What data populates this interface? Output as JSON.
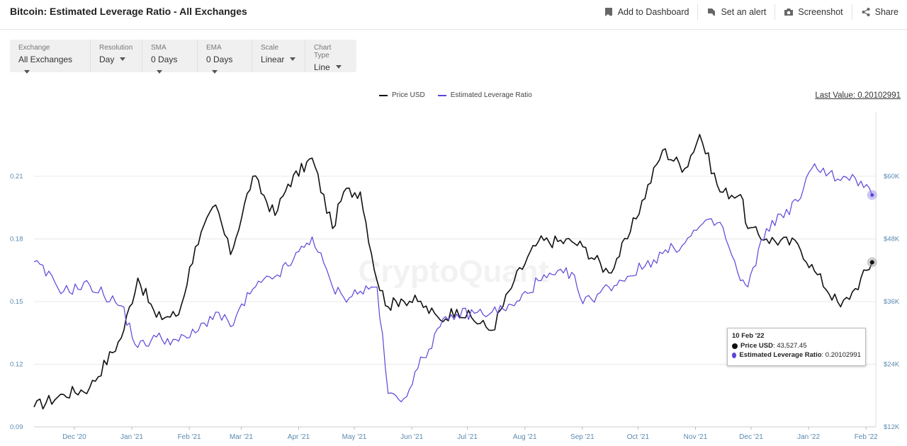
{
  "header": {
    "title": "Bitcoin: Estimated Leverage Ratio - All Exchanges",
    "actions": [
      {
        "label": "Add to Dashboard",
        "icon": "bookmark-icon"
      },
      {
        "label": "Set an alert",
        "icon": "bell-icon"
      },
      {
        "label": "Screenshot",
        "icon": "camera-icon"
      },
      {
        "label": "Share",
        "icon": "share-icon"
      }
    ]
  },
  "controls": [
    {
      "label": "Exchange",
      "value": "All Exchanges"
    },
    {
      "label": "Resolution",
      "value": "Day"
    },
    {
      "label": "SMA",
      "value": "0 Days"
    },
    {
      "label": "EMA",
      "value": "0 Days"
    },
    {
      "label": "Scale",
      "value": "Linear"
    },
    {
      "label": "Chart Type",
      "value": "Line"
    }
  ],
  "last_value": "Last Value: 0.20102991",
  "watermark": "CryptoQuant",
  "tooltip": {
    "date": "10 Feb '22",
    "rows": [
      {
        "name": "Price USD",
        "value": "43,527.45",
        "color": "#111111"
      },
      {
        "name": "Estimated Leverage Ratio",
        "value": "0.20102991",
        "color": "#5b45d8"
      }
    ]
  },
  "chart_data": {
    "type": "line",
    "x_ticks": [
      "Dec '20",
      "Jan '21",
      "Feb '21",
      "Mar '21",
      "Apr '21",
      "May '21",
      "Jun '21",
      "Jul '21",
      "Aug '21",
      "Sep '21",
      "Oct '21",
      "Nov '21",
      "Dec '21",
      "Jan '22",
      "Feb '22"
    ],
    "y_left_ticks": [
      "0.21",
      "0.18",
      "0.15",
      "0.12",
      "0.09"
    ],
    "y_right_ticks": [
      "$60K",
      "$48K",
      "$36K",
      "$24K",
      "$12K"
    ],
    "y_left_range": [
      0.09,
      0.21
    ],
    "y_right_range": [
      12000,
      60000
    ],
    "grid": true,
    "legend_position": "top-center",
    "x": [
      "2020-11-15",
      "2020-12-01",
      "2020-12-15",
      "2021-01-01",
      "2021-01-10",
      "2021-01-20",
      "2021-02-01",
      "2021-02-10",
      "2021-02-21",
      "2021-03-01",
      "2021-03-13",
      "2021-03-25",
      "2021-04-01",
      "2021-04-14",
      "2021-04-25",
      "2021-05-01",
      "2021-05-10",
      "2021-05-19",
      "2021-05-25",
      "2021-06-01",
      "2021-06-10",
      "2021-06-22",
      "2021-07-01",
      "2021-07-20",
      "2021-08-01",
      "2021-08-14",
      "2021-09-01",
      "2021-09-07",
      "2021-09-21",
      "2021-10-01",
      "2021-10-20",
      "2021-11-01",
      "2021-11-09",
      "2021-11-20",
      "2021-12-01",
      "2021-12-05",
      "2021-12-15",
      "2022-01-01",
      "2022-01-10",
      "2022-01-24",
      "2022-02-01",
      "2022-02-10"
    ],
    "series": [
      {
        "name": "Price USD",
        "color": "#111111",
        "axis": "right",
        "values": [
          15800,
          18200,
          19500,
          29000,
          40500,
          33000,
          33500,
          46500,
          54500,
          45000,
          60000,
          52500,
          58500,
          63500,
          50000,
          57000,
          57000,
          40000,
          35000,
          36500,
          36000,
          32500,
          34500,
          30500,
          40000,
          47500,
          47500,
          46500,
          41500,
          48000,
          65000,
          61500,
          68000,
          57000,
          56500,
          50000,
          48000,
          47000,
          41800,
          35000,
          38500,
          43527.45
        ]
      },
      {
        "name": "Estimated Leverage Ratio",
        "color": "#5b45d8",
        "axis": "left",
        "values": [
          0.169,
          0.155,
          0.158,
          0.148,
          0.128,
          0.133,
          0.131,
          0.135,
          0.145,
          0.138,
          0.156,
          0.162,
          0.167,
          0.181,
          0.157,
          0.152,
          0.155,
          0.157,
          0.106,
          0.102,
          0.118,
          0.138,
          0.144,
          0.145,
          0.148,
          0.16,
          0.164,
          0.149,
          0.157,
          0.162,
          0.173,
          0.178,
          0.186,
          0.188,
          0.16,
          0.157,
          0.185,
          0.198,
          0.216,
          0.208,
          0.209,
          0.20102991
        ]
      }
    ]
  }
}
